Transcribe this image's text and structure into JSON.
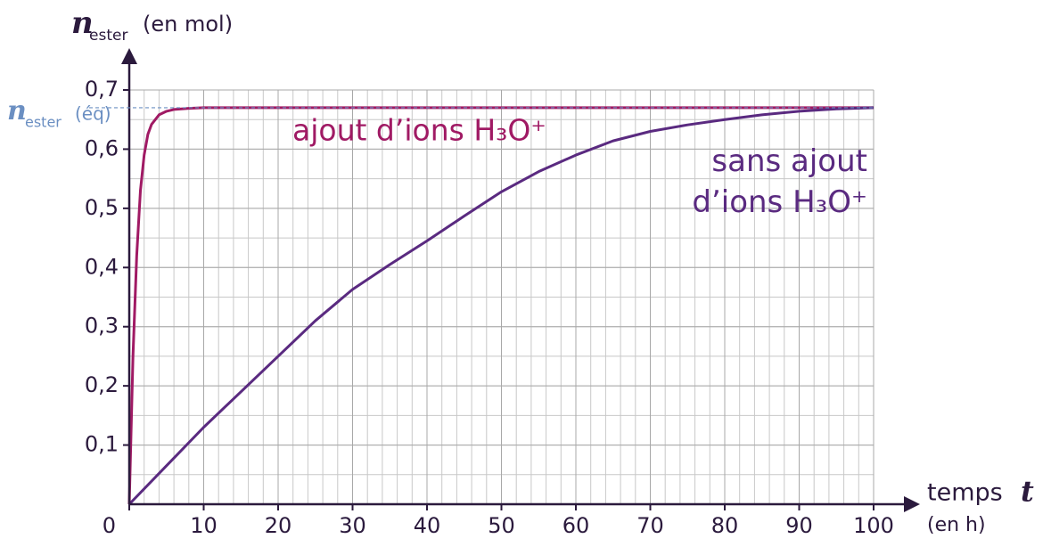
{
  "chart_data": {
    "type": "line",
    "y_label": {
      "symbol": "n",
      "subscript": "ester",
      "unit": "(en mol)"
    },
    "x_label": {
      "text": "temps",
      "symbol": "t",
      "unit": "(en h)"
    },
    "xlim": [
      0,
      100
    ],
    "xticks": [
      0,
      10,
      20,
      30,
      40,
      50,
      60,
      70,
      80,
      90,
      100
    ],
    "ylim": [
      0,
      0.7
    ],
    "yticks": [
      {
        "value": 0.1,
        "label": "0,1"
      },
      {
        "value": 0.2,
        "label": "0,2"
      },
      {
        "value": 0.3,
        "label": "0,3"
      },
      {
        "value": 0.4,
        "label": "0,4"
      },
      {
        "value": 0.5,
        "label": "0,5"
      },
      {
        "value": 0.6,
        "label": "0,6"
      },
      {
        "value": 0.7,
        "label": "0,7"
      }
    ],
    "grid": true,
    "equilibrium": {
      "value": 0.67,
      "symbol": "n",
      "subscript": "ester",
      "suffix": "(éq)",
      "color": "#6b8fc2"
    },
    "series": [
      {
        "name": "ajout d’ions H₃O⁺",
        "color": "#a01a64",
        "x": [
          0,
          0.5,
          1,
          1.5,
          2,
          2.5,
          3,
          4,
          5,
          6,
          8,
          10,
          100
        ],
        "values": [
          0,
          0.25,
          0.42,
          0.53,
          0.59,
          0.625,
          0.642,
          0.658,
          0.664,
          0.667,
          0.669,
          0.67,
          0.67
        ]
      },
      {
        "name": "sans ajout d’ions H₃O⁺",
        "color": "#5a2a80",
        "x": [
          0,
          5,
          10,
          15,
          20,
          25,
          30,
          35,
          40,
          45,
          50,
          55,
          60,
          65,
          70,
          75,
          80,
          85,
          90,
          95,
          100
        ],
        "values": [
          0,
          0.065,
          0.13,
          0.19,
          0.25,
          0.31,
          0.363,
          0.405,
          0.445,
          0.487,
          0.528,
          0.562,
          0.59,
          0.614,
          0.63,
          0.641,
          0.65,
          0.658,
          0.664,
          0.668,
          0.67
        ]
      }
    ]
  }
}
